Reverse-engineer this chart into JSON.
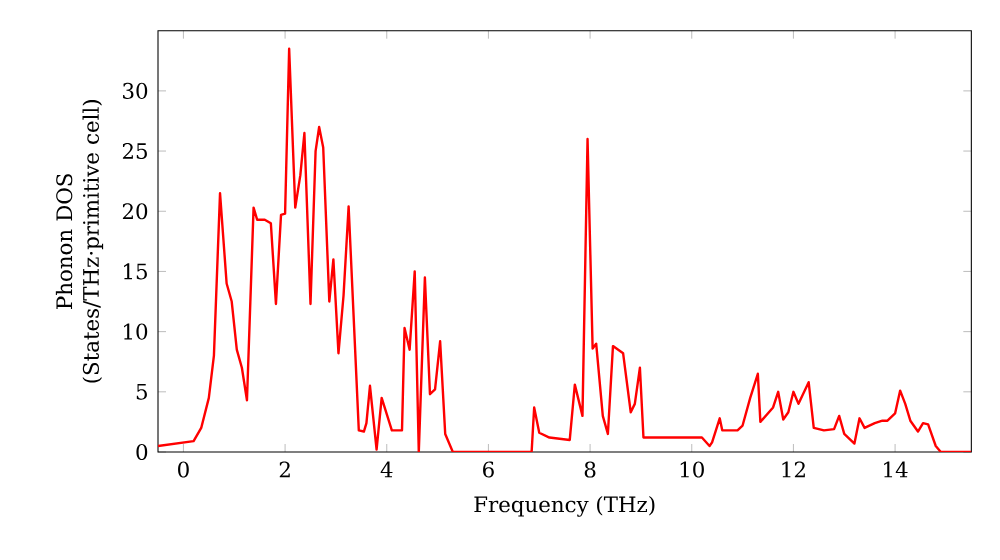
{
  "chart_data": {
    "type": "line",
    "xlabel": "Frequency (THz)",
    "ylabel": "Phonon DOS (States/THz·primitive cell)",
    "xlim": [
      -0.5,
      15.5
    ],
    "ylim": [
      0,
      35
    ],
    "xticks": [
      0,
      2,
      4,
      6,
      8,
      10,
      12,
      14
    ],
    "yticks": [
      0,
      5,
      10,
      15,
      20,
      25,
      30
    ],
    "marker": "none",
    "line_style": "solid",
    "series": [
      {
        "color": "#ff0000",
        "x": [
          -0.5,
          0.2,
          0.35,
          0.5,
          0.6,
          0.72,
          0.85,
          0.95,
          1.05,
          1.15,
          1.25,
          1.38,
          1.45,
          1.6,
          1.72,
          1.82,
          1.92,
          2.0,
          2.08,
          2.2,
          2.3,
          2.38,
          2.5,
          2.6,
          2.67,
          2.75,
          2.87,
          2.95,
          3.05,
          3.15,
          3.25,
          3.45,
          3.55,
          3.6,
          3.67,
          3.8,
          3.9,
          4.1,
          4.3,
          4.35,
          4.45,
          4.55,
          4.63,
          4.75,
          4.85,
          4.95,
          5.05,
          5.15,
          5.3,
          6.85,
          6.9,
          7.0,
          7.2,
          7.6,
          7.7,
          7.85,
          7.95,
          8.05,
          8.12,
          8.25,
          8.35,
          8.45,
          8.65,
          8.8,
          8.88,
          8.98,
          9.05,
          10.2,
          10.35,
          10.4,
          10.55,
          10.6,
          10.9,
          11.0,
          11.15,
          11.3,
          11.35,
          11.6,
          11.7,
          11.8,
          11.9,
          12.0,
          12.1,
          12.3,
          12.4,
          12.6,
          12.8,
          12.9,
          13.0,
          13.2,
          13.3,
          13.4,
          13.6,
          13.75,
          13.85,
          14.0,
          14.1,
          14.2,
          14.3,
          14.45,
          14.55,
          14.65,
          14.8,
          14.9,
          15.5
        ],
        "values": [
          0.5,
          0.9,
          2,
          4.5,
          8,
          21.5,
          14,
          12.5,
          8.5,
          7,
          4.3,
          20.3,
          19.3,
          19.3,
          19,
          12.3,
          19.7,
          19.8,
          33.5,
          20.3,
          23,
          26.5,
          12.3,
          25,
          27,
          25.3,
          12.5,
          16,
          8.2,
          13,
          20.4,
          1.8,
          1.7,
          2.4,
          5.5,
          0.2,
          4.5,
          1.8,
          1.8,
          10.3,
          8.5,
          15,
          0,
          14.5,
          4.8,
          5.2,
          9.2,
          1.5,
          0,
          0,
          3.7,
          1.6,
          1.2,
          1.0,
          5.6,
          3,
          26,
          8.6,
          9,
          3,
          1.5,
          8.8,
          8.2,
          3.3,
          4,
          7,
          1.2,
          1.2,
          0.5,
          0.8,
          2.8,
          1.8,
          1.8,
          2.2,
          4.5,
          6.5,
          2.5,
          3.7,
          5,
          2.7,
          3.3,
          5,
          4,
          5.8,
          2,
          1.8,
          1.9,
          3,
          1.5,
          0.7,
          2.8,
          2,
          2.4,
          2.6,
          2.6,
          3.2,
          5.1,
          4,
          2.6,
          1.7,
          2.4,
          2.3,
          0.5,
          0,
          0
        ]
      }
    ]
  }
}
